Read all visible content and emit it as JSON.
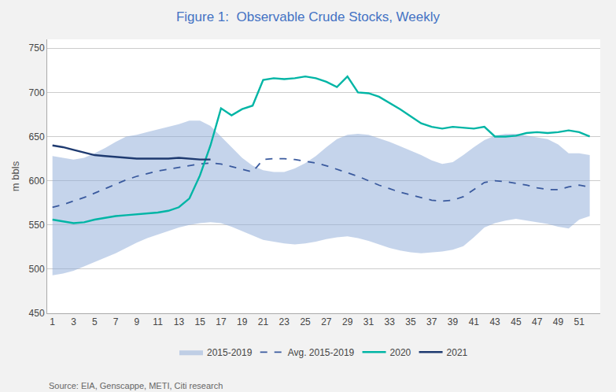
{
  "chart_data": {
    "type": "line",
    "title": "Figure 1:  Observable Crude Stocks, Weekly",
    "ylabel": "m bbls",
    "annotations": [
      "Source: EIA, Genscappe, METI, Citi research"
    ],
    "x": [
      1,
      2,
      3,
      4,
      5,
      6,
      7,
      8,
      9,
      10,
      11,
      12,
      13,
      14,
      15,
      16,
      17,
      18,
      19,
      20,
      21,
      22,
      23,
      24,
      25,
      26,
      27,
      28,
      29,
      30,
      31,
      32,
      33,
      34,
      35,
      36,
      37,
      38,
      39,
      40,
      41,
      42,
      43,
      44,
      45,
      46,
      47,
      48,
      49,
      50,
      51,
      52
    ],
    "series": [
      {
        "name": "2015-2019",
        "type": "band",
        "color": "#8baad8",
        "low": [
          493,
          495,
          498,
          503,
          508,
          513,
          518,
          524,
          530,
          535,
          539,
          543,
          547,
          550,
          552,
          553,
          552,
          548,
          543,
          538,
          533,
          531,
          529,
          528,
          529,
          531,
          534,
          536,
          537,
          535,
          532,
          528,
          524,
          521,
          519,
          518,
          519,
          520,
          522,
          526,
          536,
          547,
          552,
          555,
          557,
          555,
          553,
          551,
          548,
          546,
          556,
          560
        ],
        "high": [
          628,
          626,
          624,
          626,
          631,
          637,
          644,
          650,
          652,
          655,
          658,
          661,
          664,
          668,
          668,
          662,
          650,
          638,
          626,
          617,
          612,
          610,
          610,
          614,
          620,
          628,
          638,
          647,
          652,
          653,
          652,
          648,
          644,
          639,
          634,
          629,
          623,
          619,
          621,
          629,
          638,
          646,
          651,
          653,
          653,
          651,
          649,
          647,
          641,
          631,
          631,
          629
        ]
      },
      {
        "name": "Avg. 2015-2019",
        "type": "line",
        "color": "#3a5a9e",
        "line_style": "dashed",
        "values": [
          570,
          573,
          577,
          581,
          586,
          591,
          596,
          601,
          605,
          608,
          611,
          613,
          615,
          617,
          619,
          620,
          619,
          616,
          613,
          610,
          624,
          625,
          625,
          624,
          622,
          620,
          617,
          613,
          609,
          605,
          600,
          595,
          591,
          587,
          584,
          581,
          578,
          577,
          578,
          582,
          590,
          598,
          600,
          599,
          597,
          595,
          592,
          590,
          590,
          593,
          595,
          593
        ]
      },
      {
        "name": "2020",
        "type": "line",
        "color": "#00b5a5",
        "line_style": "solid",
        "values": [
          556,
          554,
          552,
          553,
          556,
          558,
          560,
          561,
          562,
          563,
          564,
          566,
          570,
          580,
          606,
          640,
          682,
          674,
          681,
          685,
          714,
          716,
          715,
          716,
          718,
          716,
          712,
          706,
          718,
          700,
          699,
          695,
          688,
          681,
          673,
          665,
          661,
          659,
          661,
          660,
          659,
          661,
          650,
          650,
          651,
          654,
          655,
          654,
          655,
          657,
          655,
          650
        ]
      },
      {
        "name": "2021",
        "type": "line",
        "color": "#1e3a70",
        "line_style": "solid",
        "values": [
          640,
          638,
          635,
          632,
          629,
          628,
          627,
          626,
          625,
          625,
          625,
          625,
          626,
          625,
          624,
          624,
          null,
          null,
          null,
          null,
          null,
          null,
          null,
          null,
          null,
          null,
          null,
          null,
          null,
          null,
          null,
          null,
          null,
          null,
          null,
          null,
          null,
          null,
          null,
          null,
          null,
          null,
          null,
          null,
          null,
          null,
          null,
          null,
          null,
          null,
          null,
          null
        ]
      }
    ],
    "xlim": [
      0.5,
      53
    ],
    "xticks": [
      1,
      3,
      5,
      7,
      9,
      11,
      13,
      15,
      17,
      19,
      21,
      23,
      25,
      27,
      29,
      31,
      33,
      35,
      37,
      39,
      41,
      43,
      45,
      47,
      49,
      51
    ],
    "ylim": [
      450,
      760
    ],
    "yticks": [
      450,
      500,
      550,
      600,
      650,
      700,
      750
    ],
    "grid": true,
    "legend": "bottom"
  }
}
